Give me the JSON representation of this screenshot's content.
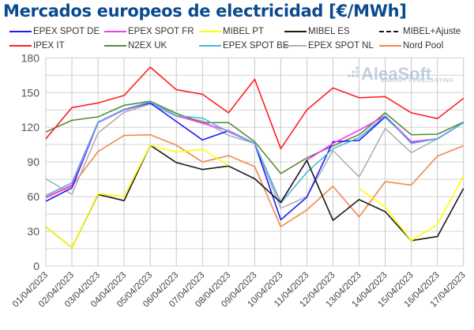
{
  "chart_data": {
    "type": "line",
    "title": "Mercados europeos de electricidad [€/MWh]",
    "xlabel": "",
    "ylabel": "",
    "ylim": [
      0,
      180
    ],
    "yticks": [
      0,
      30,
      60,
      90,
      120,
      150,
      180
    ],
    "grid": true,
    "legend_position": "top",
    "x": [
      "01/04/2023",
      "02/04/2023",
      "03/04/2023",
      "04/04/2023",
      "05/04/2023",
      "06/04/2023",
      "07/04/2023",
      "08/04/2023",
      "09/04/2023",
      "10/04/2023",
      "11/04/2023",
      "12/04/2023",
      "13/04/2023",
      "14/04/2023",
      "15/04/2023",
      "16/04/2023",
      "17/04/2023"
    ],
    "series": [
      {
        "name": "EPEX SPOT DE",
        "color": "#1a1aff",
        "dashed": false,
        "values": [
          56,
          67.5,
          124,
          135,
          141,
          125,
          109,
          117,
          106,
          40,
          59.5,
          107.5,
          108.5,
          129,
          107,
          110,
          124
        ]
      },
      {
        "name": "EPEX SPOT FR",
        "color": "#ff33ff",
        "dashed": false,
        "values": [
          59.5,
          70,
          124,
          135,
          142,
          130,
          123.5,
          117,
          106,
          55,
          91.5,
          106,
          117.5,
          130,
          107.5,
          110,
          124
        ]
      },
      {
        "name": "MIBEL PT",
        "color": "#ffff00",
        "dashed": false,
        "values": [
          34,
          16,
          62.5,
          60,
          104.5,
          98.5,
          101,
          87,
          null,
          null,
          null,
          null,
          67,
          51,
          22,
          36,
          78
        ]
      },
      {
        "name": "MIBEL ES",
        "color": "#1a1a1a",
        "dashed": false,
        "values": [
          34,
          16,
          62,
          56.5,
          104.5,
          89.5,
          83.5,
          86.5,
          75.5,
          55,
          91.5,
          39.5,
          57.5,
          47,
          22,
          25.5,
          67
        ]
      },
      {
        "name": "MIBEL+Ajuste",
        "color": "#1a1a1a",
        "dashed": true,
        "values": []
      },
      {
        "name": "IPEX IT",
        "color": "#ff2020",
        "dashed": false,
        "values": [
          110,
          137,
          141,
          147.5,
          172,
          152.5,
          148.5,
          132.5,
          161.5,
          101.5,
          135,
          154,
          145.5,
          146.5,
          132.5,
          127.5,
          145
        ]
      },
      {
        "name": "N2EX UK",
        "color": "#5c8a3c",
        "dashed": false,
        "values": [
          116,
          126,
          129,
          139,
          142.5,
          132,
          124,
          124,
          107.5,
          80,
          93.5,
          104,
          113.5,
          132.5,
          113.5,
          114,
          124.5
        ]
      },
      {
        "name": "EPEX SPOT BE",
        "color": "#4db8d9",
        "dashed": false,
        "values": [
          61,
          72,
          124.5,
          135.5,
          142,
          130,
          128,
          116,
          106,
          54.5,
          81,
          101.5,
          111,
          130,
          106,
          110,
          124
        ]
      },
      {
        "name": "EPEX SPOT NL",
        "color": "#b0b0b0",
        "dashed": false,
        "values": [
          75.5,
          62,
          115,
          133,
          140,
          129.5,
          125.5,
          113,
          106,
          50,
          60,
          100,
          77,
          119,
          98,
          110,
          124
        ]
      },
      {
        "name": "Nord Pool",
        "color": "#f08a4b",
        "dashed": false,
        "values": [
          59,
          69,
          99,
          113,
          113.5,
          104.5,
          90,
          95.5,
          86,
          34,
          48.5,
          69,
          42.5,
          73,
          70,
          95,
          104
        ]
      }
    ]
  },
  "watermark": {
    "brand": "AleaSoft",
    "tagline": "ENERGY FORECASTING"
  }
}
